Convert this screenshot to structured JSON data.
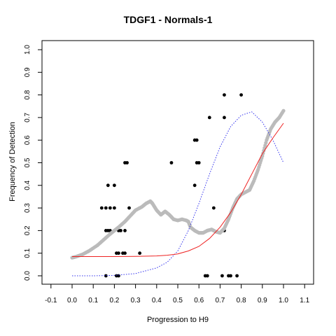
{
  "chart_data": {
    "type": "scatter",
    "title": "TDGF1 - Normals-1",
    "xlabel": "Progression to H9",
    "ylabel": "Frequency of Detection",
    "xlim": [
      -0.1,
      1.1
    ],
    "ylim": [
      0.0,
      1.0
    ],
    "x_ticks": [
      "-0.1",
      "0.0",
      "0.1",
      "0.2",
      "0.3",
      "0.4",
      "0.5",
      "0.6",
      "0.7",
      "0.8",
      "0.9",
      "1.0",
      "1.1"
    ],
    "y_ticks": [
      "0.0",
      "0.1",
      "0.2",
      "0.3",
      "0.4",
      "0.5",
      "0.6",
      "0.7",
      "0.8",
      "0.9",
      "1.0"
    ],
    "grid": false,
    "series": [
      {
        "kind": "points",
        "color": "#000000",
        "points": [
          [
            0.16,
            0.0
          ],
          [
            0.21,
            0.0
          ],
          [
            0.22,
            0.0
          ],
          [
            0.21,
            0.1
          ],
          [
            0.22,
            0.1
          ],
          [
            0.24,
            0.1
          ],
          [
            0.25,
            0.1
          ],
          [
            0.32,
            0.1
          ],
          [
            0.16,
            0.2
          ],
          [
            0.17,
            0.2
          ],
          [
            0.18,
            0.2
          ],
          [
            0.22,
            0.2
          ],
          [
            0.23,
            0.2
          ],
          [
            0.25,
            0.2
          ],
          [
            0.14,
            0.3
          ],
          [
            0.16,
            0.3
          ],
          [
            0.18,
            0.3
          ],
          [
            0.2,
            0.3
          ],
          [
            0.27,
            0.3
          ],
          [
            0.32,
            0.3
          ],
          [
            0.17,
            0.4
          ],
          [
            0.2,
            0.4
          ],
          [
            0.25,
            0.5
          ],
          [
            0.26,
            0.5
          ],
          [
            0.47,
            0.5
          ],
          [
            0.58,
            0.4
          ],
          [
            0.59,
            0.5
          ],
          [
            0.6,
            0.5
          ],
          [
            0.58,
            0.6
          ],
          [
            0.59,
            0.6
          ],
          [
            0.64,
            0.2
          ],
          [
            0.65,
            0.7
          ],
          [
            0.67,
            0.3
          ],
          [
            0.63,
            0.0
          ],
          [
            0.64,
            0.0
          ],
          [
            0.71,
            0.0
          ],
          [
            0.72,
            0.2
          ],
          [
            0.72,
            0.7
          ],
          [
            0.72,
            0.8
          ],
          [
            0.74,
            0.0
          ],
          [
            0.75,
            0.0
          ],
          [
            0.78,
            0.0
          ],
          [
            0.8,
            0.8
          ]
        ]
      },
      {
        "kind": "smooth",
        "color": "#bbbbbb",
        "points": [
          [
            0.0,
            0.08
          ],
          [
            0.02,
            0.085
          ],
          [
            0.05,
            0.095
          ],
          [
            0.08,
            0.11
          ],
          [
            0.12,
            0.135
          ],
          [
            0.15,
            0.16
          ],
          [
            0.18,
            0.185
          ],
          [
            0.2,
            0.2
          ],
          [
            0.22,
            0.215
          ],
          [
            0.25,
            0.24
          ],
          [
            0.28,
            0.27
          ],
          [
            0.3,
            0.29
          ],
          [
            0.33,
            0.305
          ],
          [
            0.35,
            0.32
          ],
          [
            0.37,
            0.33
          ],
          [
            0.38,
            0.32
          ],
          [
            0.4,
            0.29
          ],
          [
            0.42,
            0.27
          ],
          [
            0.44,
            0.285
          ],
          [
            0.46,
            0.27
          ],
          [
            0.48,
            0.25
          ],
          [
            0.5,
            0.245
          ],
          [
            0.52,
            0.25
          ],
          [
            0.54,
            0.245
          ],
          [
            0.55,
            0.24
          ],
          [
            0.56,
            0.215
          ],
          [
            0.58,
            0.2
          ],
          [
            0.6,
            0.19
          ],
          [
            0.62,
            0.19
          ],
          [
            0.64,
            0.2
          ],
          [
            0.66,
            0.205
          ],
          [
            0.68,
            0.195
          ],
          [
            0.7,
            0.19
          ],
          [
            0.72,
            0.21
          ],
          [
            0.74,
            0.25
          ],
          [
            0.76,
            0.3
          ],
          [
            0.78,
            0.34
          ],
          [
            0.8,
            0.36
          ],
          [
            0.82,
            0.37
          ],
          [
            0.84,
            0.38
          ],
          [
            0.86,
            0.42
          ],
          [
            0.88,
            0.47
          ],
          [
            0.9,
            0.53
          ],
          [
            0.92,
            0.6
          ],
          [
            0.94,
            0.65
          ],
          [
            0.96,
            0.68
          ],
          [
            0.98,
            0.7
          ],
          [
            1.0,
            0.73
          ]
        ]
      },
      {
        "kind": "line",
        "style": "dotted",
        "color": "#3333ee",
        "points": [
          [
            0.0,
            0.0
          ],
          [
            0.1,
            0.0
          ],
          [
            0.2,
            0.002
          ],
          [
            0.3,
            0.01
          ],
          [
            0.4,
            0.035
          ],
          [
            0.45,
            0.06
          ],
          [
            0.5,
            0.11
          ],
          [
            0.55,
            0.2
          ],
          [
            0.6,
            0.32
          ],
          [
            0.65,
            0.45
          ],
          [
            0.7,
            0.57
          ],
          [
            0.75,
            0.66
          ],
          [
            0.8,
            0.71
          ],
          [
            0.85,
            0.725
          ],
          [
            0.9,
            0.68
          ],
          [
            0.95,
            0.6
          ],
          [
            1.0,
            0.5
          ]
        ]
      },
      {
        "kind": "line",
        "style": "solid",
        "color": "#ee2222",
        "points": [
          [
            0.0,
            0.085
          ],
          [
            0.1,
            0.085
          ],
          [
            0.2,
            0.085
          ],
          [
            0.3,
            0.086
          ],
          [
            0.4,
            0.088
          ],
          [
            0.45,
            0.091
          ],
          [
            0.5,
            0.097
          ],
          [
            0.55,
            0.11
          ],
          [
            0.6,
            0.13
          ],
          [
            0.65,
            0.165
          ],
          [
            0.7,
            0.215
          ],
          [
            0.75,
            0.28
          ],
          [
            0.8,
            0.36
          ],
          [
            0.85,
            0.45
          ],
          [
            0.9,
            0.54
          ],
          [
            0.95,
            0.61
          ],
          [
            1.0,
            0.675
          ]
        ]
      }
    ]
  }
}
